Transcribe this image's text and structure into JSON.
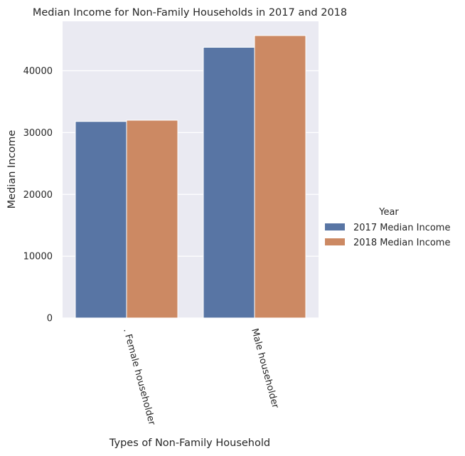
{
  "chart_data": {
    "type": "bar",
    "title": "Median Income for Non-Family Households in 2017  and 2018",
    "xlabel": "Types of Non-Family Household",
    "ylabel": "Median Income",
    "categories": [
      ". Female householder",
      "Male householder"
    ],
    "series": [
      {
        "name": "2017 Median Income",
        "values": [
          31800,
          43800
        ],
        "color": "#5875a4"
      },
      {
        "name": "2018 Median Income",
        "values": [
          32000,
          45700
        ],
        "color": "#cc8963"
      }
    ],
    "ylim": [
      0,
      48000
    ],
    "yticks": [
      0,
      10000,
      20000,
      30000,
      40000
    ],
    "grid": true,
    "background_color": "#eaeaf2",
    "legend": {
      "title": "Year",
      "placement": "right"
    }
  }
}
